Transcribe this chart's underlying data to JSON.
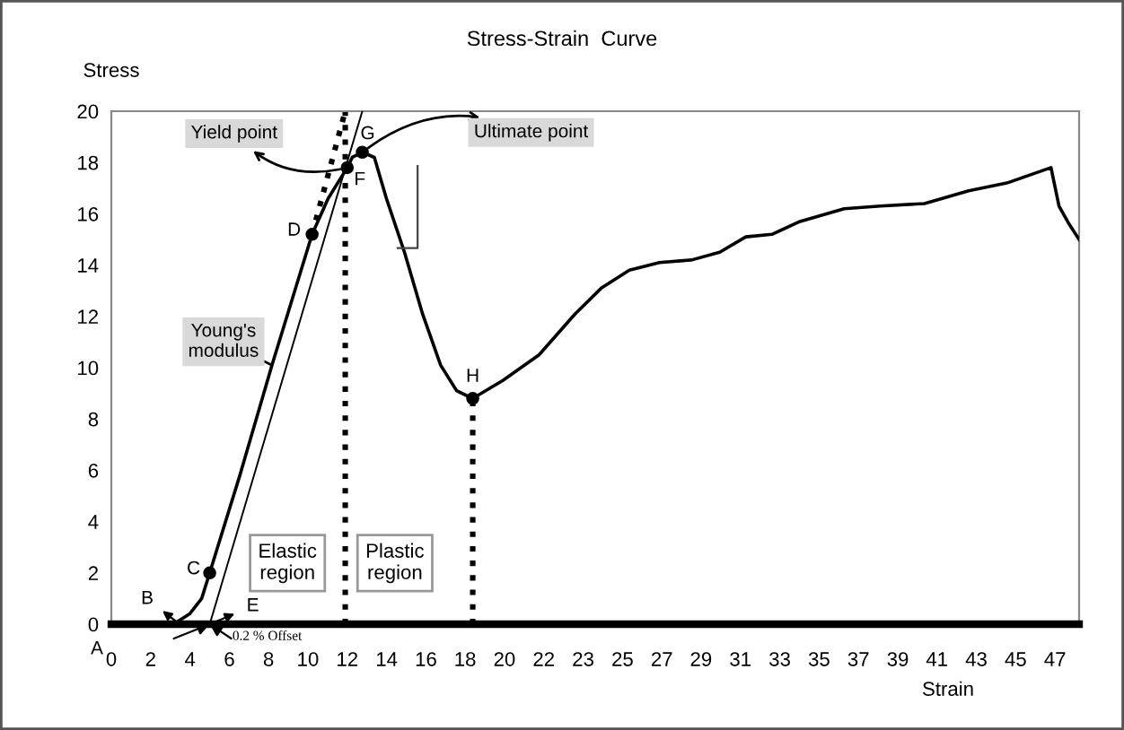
{
  "chart_data": {
    "type": "line",
    "title": "Stress-Strain  Curve",
    "xlabel": "Strain",
    "ylabel": "Stress",
    "xlim": [
      0,
      48.2
    ],
    "ylim": [
      0,
      20
    ],
    "xticks": [
      0,
      {
        "value": 1.96,
        "label": "2"
      },
      {
        "value": 3.92,
        "label": "4"
      },
      {
        "value": 5.88,
        "label": "6"
      },
      {
        "value": 7.83,
        "label": "8"
      },
      {
        "value": 9.79,
        "label": "10"
      },
      {
        "value": 11.75,
        "label": "12"
      },
      {
        "value": 13.71,
        "label": "14"
      },
      {
        "value": 15.67,
        "label": "16"
      },
      {
        "value": 17.62,
        "label": "18"
      },
      {
        "value": 19.58,
        "label": "20"
      },
      {
        "value": 21.54,
        "label": "22"
      },
      {
        "value": 23.5,
        "label": "23"
      },
      {
        "value": 25.46,
        "label": "25"
      },
      {
        "value": 27.42,
        "label": "27"
      },
      {
        "value": 29.37,
        "label": "29"
      },
      {
        "value": 31.33,
        "label": "31"
      },
      {
        "value": 33.29,
        "label": "33"
      },
      {
        "value": 35.25,
        "label": "35"
      },
      {
        "value": 37.21,
        "label": "37"
      },
      {
        "value": 39.17,
        "label": "39"
      },
      {
        "value": 41.12,
        "label": "41"
      },
      {
        "value": 43.08,
        "label": "43"
      },
      {
        "value": 45.04,
        "label": "45"
      },
      47
    ],
    "yticks": [
      0,
      2,
      4,
      6,
      8,
      10,
      12,
      14,
      16,
      18,
      20
    ],
    "grid": false,
    "legend": false,
    "series": [
      {
        "color": "#000000",
        "line_style": "solid",
        "marker": "none",
        "x": [
          0,
          3.1,
          3.9,
          4.5,
          4.9,
          6.4,
          8.0,
          10.0,
          10.8,
          11.75,
          12.0,
          12.5,
          13.1,
          13.7,
          14.6,
          15.5,
          16.4,
          17.2,
          18.0,
          19.5,
          21.3,
          23.1,
          24.4,
          25.8,
          27.3,
          28.9,
          30.3,
          31.6,
          32.9,
          34.3,
          36.5,
          38.3,
          40.5,
          42.7,
          44.6,
          46.8,
          47.2,
          47.7,
          48.2
        ],
        "values": [
          0,
          0,
          0.4,
          1.0,
          2.0,
          5.8,
          10.1,
          15.2,
          16.6,
          17.8,
          18.2,
          18.4,
          18.2,
          16.6,
          14.5,
          12.1,
          10.1,
          9.1,
          8.8,
          9.5,
          10.5,
          12.1,
          13.1,
          13.8,
          14.1,
          14.2,
          14.5,
          15.1,
          15.2,
          15.7,
          16.2,
          16.3,
          16.4,
          16.9,
          17.2,
          17.8,
          16.3,
          15.6,
          15.0
        ]
      },
      {
        "color": "#000000",
        "line_style": "solid",
        "marker": "none",
        "x": [
          4.9,
          12.5
        ],
        "values": [
          0,
          20
        ]
      },
      {
        "color": "#000000",
        "line_style": "dotted",
        "marker": "none",
        "x": [
          10.0,
          11.65
        ],
        "values": [
          15.2,
          20
        ]
      },
      {
        "color": "#000000",
        "line_style": "dotted",
        "marker": "none",
        "x": [
          18.0,
          18.0
        ],
        "values": [
          0,
          8.8
        ]
      },
      {
        "type": "scatter",
        "color": "#000000",
        "marker": "circle",
        "x": [
          4.9,
          10.0,
          11.75,
          12.5,
          18.0
        ],
        "values": [
          2.0,
          15.2,
          17.8,
          18.4,
          8.8
        ]
      }
    ],
    "ref_lines": [
      {
        "axis": "x",
        "value": 11.65,
        "color": "#000000",
        "line_style": "dotted"
      }
    ],
    "annotations": [
      {
        "text": "Yield point",
        "x": 11.75,
        "y": 17.8
      },
      {
        "text": "Ultimate point",
        "x": 12.5,
        "y": 18.4
      },
      {
        "text": "Young's\nmodulus",
        "x": 8.0,
        "y": 10.1
      },
      "Elastic\nregion",
      "Plastic\nregion",
      {
        "text": "0.2 % Offset",
        "x": 4.9,
        "y": 0
      },
      {
        "text": "A",
        "x": 0,
        "y": 0
      },
      {
        "text": "B",
        "x": 3.4,
        "y": 0
      },
      {
        "text": "C",
        "x": 4.9,
        "y": 2.0
      },
      {
        "text": "D",
        "x": 10.0,
        "y": 15.2
      },
      {
        "text": "E",
        "x": 4.9,
        "y": 0
      },
      {
        "text": "F",
        "x": 11.75,
        "y": 17.8
      },
      {
        "text": "G",
        "x": 12.5,
        "y": 18.4
      },
      {
        "text": "H",
        "x": 18.0,
        "y": 8.8
      }
    ]
  }
}
